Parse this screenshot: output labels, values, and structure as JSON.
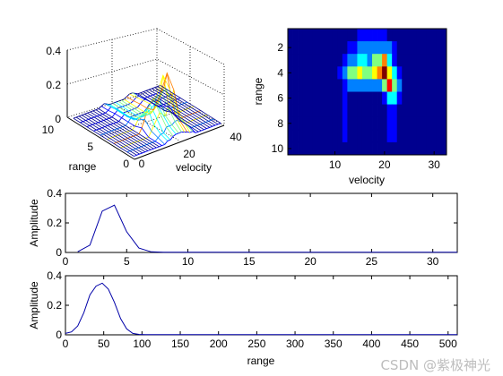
{
  "watermark": "CSDN @紫极神光",
  "colors": {
    "line": "#0000a8",
    "axes": "#000000",
    "background": "#ffffff",
    "colormap": [
      "#00008f",
      "#0000ff",
      "#0080ff",
      "#00ffff",
      "#80ff80",
      "#ffff00",
      "#ff8000",
      "#ff0000",
      "#800000"
    ]
  },
  "chart_data": [
    {
      "id": "surface3d",
      "type": "surface",
      "xlabel": "velocity",
      "ylabel": "range",
      "zlabel": "",
      "x_ticks": [
        "0",
        "20",
        "40"
      ],
      "y_ticks": [
        "0",
        "5",
        "10"
      ],
      "z_ticks": [
        "0",
        "0.2",
        "0.4"
      ],
      "xlim": [
        0,
        40
      ],
      "ylim": [
        0,
        10
      ],
      "zlim": [
        0,
        0.4
      ],
      "grid": true,
      "peak": {
        "velocity": 20,
        "range": 4,
        "amplitude": 0.3
      }
    },
    {
      "id": "heatmap",
      "type": "heatmap",
      "xlabel": "velocity",
      "ylabel": "range",
      "x_ticks": [
        "10",
        "20",
        "30"
      ],
      "y_ticks": [
        "2",
        "4",
        "6",
        "8",
        "10"
      ],
      "xlim": [
        0.5,
        32.5
      ],
      "ylim": [
        0.5,
        10.5
      ],
      "rows": 10,
      "cols": 32,
      "values": [
        [
          0,
          0,
          0,
          0,
          0,
          0,
          0,
          0,
          0,
          0,
          0,
          0,
          0.05,
          0.05,
          0.1,
          0.12,
          0.12,
          0.12,
          0.1,
          0.08,
          0.05,
          0.05,
          0,
          0,
          0,
          0,
          0,
          0,
          0,
          0,
          0,
          0
        ],
        [
          0,
          0,
          0,
          0,
          0,
          0,
          0,
          0,
          0,
          0,
          0,
          0.05,
          0.1,
          0.1,
          0.2,
          0.2,
          0.2,
          0.25,
          0.25,
          0.2,
          0.2,
          0.1,
          0.05,
          0,
          0,
          0,
          0,
          0,
          0,
          0,
          0,
          0
        ],
        [
          0,
          0,
          0,
          0,
          0,
          0,
          0,
          0,
          0,
          0,
          0,
          0.1,
          0.2,
          0.3,
          0.4,
          0.35,
          0.3,
          0.45,
          0.55,
          0.75,
          0.4,
          0.15,
          0.05,
          0,
          0,
          0,
          0,
          0,
          0,
          0,
          0,
          0
        ],
        [
          0,
          0,
          0,
          0,
          0,
          0,
          0,
          0,
          0,
          0,
          0.1,
          0.25,
          0.45,
          0.5,
          0.6,
          0.5,
          0.55,
          0.65,
          0.75,
          1.0,
          0.65,
          0.4,
          0.1,
          0,
          0,
          0,
          0,
          0,
          0,
          0,
          0,
          0
        ],
        [
          0,
          0,
          0,
          0,
          0,
          0,
          0,
          0,
          0,
          0,
          0.05,
          0.15,
          0.2,
          0.2,
          0.25,
          0.25,
          0.2,
          0.25,
          0.3,
          0.5,
          0.85,
          0.55,
          0.2,
          0.05,
          0,
          0,
          0,
          0,
          0,
          0,
          0,
          0
        ],
        [
          0,
          0,
          0,
          0,
          0,
          0,
          0,
          0,
          0,
          0,
          0.05,
          0.12,
          0.05,
          0.05,
          0.05,
          0.05,
          0.05,
          0.05,
          0.05,
          0.1,
          0.35,
          0.35,
          0.1,
          0,
          0,
          0,
          0,
          0,
          0,
          0,
          0,
          0
        ],
        [
          0,
          0,
          0,
          0,
          0,
          0,
          0,
          0,
          0,
          0,
          0.05,
          0.1,
          0.03,
          0,
          0,
          0,
          0,
          0,
          0,
          0.05,
          0.12,
          0.12,
          0.05,
          0,
          0,
          0,
          0,
          0,
          0,
          0,
          0,
          0
        ],
        [
          0,
          0,
          0,
          0,
          0,
          0,
          0,
          0,
          0,
          0,
          0.05,
          0.1,
          0.03,
          0,
          0,
          0,
          0,
          0,
          0,
          0.05,
          0.1,
          0.1,
          0.05,
          0,
          0,
          0,
          0,
          0,
          0,
          0,
          0,
          0
        ],
        [
          0,
          0,
          0,
          0,
          0,
          0,
          0,
          0,
          0,
          0,
          0.03,
          0.08,
          0.03,
          0,
          0,
          0,
          0,
          0,
          0,
          0.03,
          0.08,
          0.08,
          0.03,
          0,
          0,
          0,
          0,
          0,
          0,
          0,
          0,
          0
        ],
        [
          0,
          0,
          0,
          0,
          0,
          0,
          0,
          0,
          0,
          0,
          0.03,
          0.06,
          0.03,
          0,
          0,
          0,
          0,
          0,
          0,
          0.03,
          0.06,
          0.06,
          0.03,
          0,
          0,
          0,
          0,
          0,
          0,
          0,
          0,
          0
        ]
      ]
    },
    {
      "id": "range-profile-coarse",
      "type": "line",
      "xlabel": "",
      "ylabel": "Amplitude",
      "x_ticks": [
        "0",
        "5",
        "10",
        "15",
        "20",
        "25",
        "30"
      ],
      "y_ticks": [
        "0",
        "0.2",
        "0.4"
      ],
      "xlim": [
        0,
        32
      ],
      "ylim": [
        0,
        0.4
      ],
      "x": [
        1,
        2,
        3,
        4,
        5,
        6,
        7,
        8,
        9,
        10,
        11,
        12,
        13,
        14,
        15,
        16,
        17,
        18,
        19,
        20,
        21,
        22,
        23,
        24,
        25,
        26,
        27,
        28,
        29,
        30,
        31,
        32
      ],
      "y": [
        0.005,
        0.05,
        0.28,
        0.32,
        0.14,
        0.03,
        0.004,
        0.002,
        0.002,
        0.002,
        0.002,
        0.002,
        0.002,
        0.002,
        0.002,
        0.002,
        0.002,
        0.002,
        0.002,
        0.002,
        0.002,
        0.002,
        0.002,
        0.002,
        0.002,
        0.002,
        0.002,
        0.002,
        0.002,
        0.002,
        0.002,
        0.002
      ]
    },
    {
      "id": "range-profile-fine",
      "type": "line",
      "xlabel": "range",
      "ylabel": "Amplitude",
      "x_ticks": [
        "0",
        "50",
        "100",
        "150",
        "200",
        "250",
        "300",
        "350",
        "400",
        "450",
        "500"
      ],
      "y_ticks": [
        "0",
        "0.2",
        "0.4"
      ],
      "xlim": [
        0,
        512
      ],
      "ylim": [
        0,
        0.4
      ],
      "x": [
        0,
        8,
        16,
        24,
        32,
        40,
        48,
        56,
        64,
        72,
        80,
        88,
        96,
        104,
        112,
        128,
        160,
        200,
        256,
        300,
        350,
        400,
        450,
        500,
        512
      ],
      "y": [
        0.01,
        0.02,
        0.06,
        0.15,
        0.27,
        0.33,
        0.35,
        0.31,
        0.22,
        0.11,
        0.04,
        0.01,
        0.003,
        0.002,
        0.002,
        0.002,
        0.002,
        0.002,
        0.002,
        0.002,
        0.002,
        0.002,
        0.002,
        0.002,
        0.002
      ]
    }
  ]
}
